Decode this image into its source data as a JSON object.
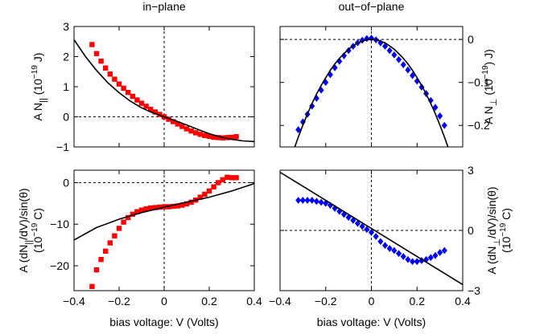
{
  "chart_data": [
    {
      "type": "scatter",
      "title": "in−plane",
      "ylabel_main": "A N",
      "ylabel_sub": "||",
      "ylabel_unit": "(10",
      "ylabel_exp": "−19",
      "ylabel_end": " J)",
      "xlim": [
        -0.4,
        0.4
      ],
      "ylim": [
        -1,
        3
      ],
      "xticks": [],
      "yticks": [
        {
          "v": -1,
          "t": "−1"
        },
        {
          "v": 0,
          "t": "0"
        },
        {
          "v": 1,
          "t": "1"
        },
        {
          "v": 2,
          "t": "2"
        },
        {
          "v": 3,
          "t": "3"
        }
      ],
      "ytick_side": "left",
      "marker": "square",
      "marker_color": "#ff0000",
      "line_color": "#000000",
      "series": [
        {
          "type": "markers",
          "x": [
            -0.32,
            -0.3,
            -0.28,
            -0.26,
            -0.24,
            -0.22,
            -0.2,
            -0.18,
            -0.16,
            -0.14,
            -0.12,
            -0.1,
            -0.08,
            -0.06,
            -0.04,
            -0.02,
            0.0,
            0.02,
            0.04,
            0.06,
            0.08,
            0.1,
            0.12,
            0.14,
            0.16,
            0.18,
            0.2,
            0.22,
            0.24,
            0.26,
            0.28,
            0.3,
            0.32
          ],
          "y": [
            2.4,
            2.1,
            1.85,
            1.62,
            1.42,
            1.25,
            1.09,
            0.95,
            0.81,
            0.68,
            0.56,
            0.45,
            0.35,
            0.25,
            0.16,
            0.08,
            0.0,
            -0.08,
            -0.16,
            -0.24,
            -0.32,
            -0.4,
            -0.47,
            -0.53,
            -0.58,
            -0.62,
            -0.65,
            -0.68,
            -0.69,
            -0.7,
            -0.69,
            -0.68,
            -0.66
          ]
        },
        {
          "type": "line",
          "x": [
            -0.4,
            -0.35,
            -0.3,
            -0.25,
            -0.2,
            -0.15,
            -0.1,
            -0.05,
            0.0,
            0.05,
            0.1,
            0.15,
            0.2,
            0.25,
            0.3,
            0.35,
            0.4
          ],
          "y": [
            2.56,
            2.01,
            1.54,
            1.13,
            0.8,
            0.52,
            0.3,
            0.13,
            0.0,
            -0.13,
            -0.27,
            -0.42,
            -0.56,
            -0.67,
            -0.75,
            -0.8,
            -0.82
          ]
        }
      ]
    },
    {
      "type": "scatter",
      "title": "out−of−plane",
      "ylabel_main": "A N",
      "ylabel_sub": "⊥",
      "ylabel_unit": "(10",
      "ylabel_exp": "−19",
      "ylabel_end": ") J)",
      "xlim": [
        -0.4,
        0.4
      ],
      "ylim": [
        -0.25,
        0.03
      ],
      "xticks": [],
      "yticks": [
        {
          "v": -0.2,
          "t": "−0.2"
        },
        {
          "v": -0.1,
          "t": "−0.1"
        },
        {
          "v": 0,
          "t": "0"
        }
      ],
      "ytick_side": "right",
      "marker": "diamond",
      "marker_color": "#0000ff",
      "line_color": "#000000",
      "series": [
        {
          "type": "markers",
          "x": [
            -0.32,
            -0.3,
            -0.28,
            -0.26,
            -0.24,
            -0.22,
            -0.2,
            -0.18,
            -0.16,
            -0.14,
            -0.12,
            -0.1,
            -0.08,
            -0.06,
            -0.04,
            -0.02,
            0.0,
            0.02,
            0.04,
            0.06,
            0.08,
            0.1,
            0.12,
            0.14,
            0.16,
            0.18,
            0.2,
            0.22,
            0.24,
            0.26,
            0.28,
            0.3,
            0.32
          ],
          "y": [
            -0.21,
            -0.192,
            -0.174,
            -0.155,
            -0.137,
            -0.118,
            -0.1,
            -0.082,
            -0.066,
            -0.051,
            -0.038,
            -0.026,
            -0.016,
            -0.008,
            -0.002,
            0.002,
            0.003,
            -0.001,
            -0.008,
            -0.016,
            -0.026,
            -0.036,
            -0.047,
            -0.059,
            -0.071,
            -0.084,
            -0.097,
            -0.111,
            -0.126,
            -0.142,
            -0.158,
            -0.178,
            -0.2
          ]
        },
        {
          "type": "line",
          "x": [
            -0.34,
            -0.32,
            -0.3,
            -0.28,
            -0.26,
            -0.24,
            -0.22,
            -0.2,
            -0.18,
            -0.16,
            -0.14,
            -0.12,
            -0.1,
            -0.08,
            -0.06,
            -0.04,
            -0.02,
            0.0,
            0.02,
            0.04,
            0.06,
            0.08,
            0.1,
            0.12,
            0.14,
            0.16,
            0.18,
            0.2,
            0.22,
            0.24,
            0.26,
            0.28,
            0.3,
            0.32,
            0.34
          ],
          "y": [
            -0.257,
            -0.227,
            -0.199,
            -0.173,
            -0.149,
            -0.127,
            -0.107,
            -0.089,
            -0.072,
            -0.057,
            -0.044,
            -0.033,
            -0.023,
            -0.015,
            -0.008,
            -0.004,
            -0.001,
            0.0,
            -0.001,
            -0.004,
            -0.008,
            -0.015,
            -0.023,
            -0.033,
            -0.044,
            -0.057,
            -0.072,
            -0.089,
            -0.107,
            -0.127,
            -0.149,
            -0.173,
            -0.199,
            -0.227,
            -0.257
          ]
        }
      ]
    },
    {
      "type": "scatter",
      "title": "",
      "ylabel_main": "A (dN",
      "ylabel_sub": "||",
      "ylabel_rest": "/dV)/sin(θ)",
      "ylabel_unit": "(10",
      "ylabel_exp": "−19",
      "ylabel_end": " C)",
      "xlabel": "bias voltage: V (Volts)",
      "xlim": [
        -0.4,
        0.4
      ],
      "ylim": [
        -26,
        3
      ],
      "xticks": [
        {
          "v": -0.4,
          "t": "−0.4"
        },
        {
          "v": -0.2,
          "t": "−0.2"
        },
        {
          "v": 0,
          "t": "0"
        },
        {
          "v": 0.2,
          "t": "0.2"
        },
        {
          "v": 0.4,
          "t": "0.4"
        }
      ],
      "yticks": [
        {
          "v": -20,
          "t": "−20"
        },
        {
          "v": -10,
          "t": "−10"
        },
        {
          "v": 0,
          "t": "0"
        }
      ],
      "ytick_side": "left",
      "marker": "square",
      "marker_color": "#ff0000",
      "line_color": "#000000",
      "series": [
        {
          "type": "markers",
          "x": [
            -0.32,
            -0.3,
            -0.28,
            -0.26,
            -0.24,
            -0.22,
            -0.2,
            -0.18,
            -0.16,
            -0.14,
            -0.12,
            -0.1,
            -0.08,
            -0.06,
            -0.04,
            -0.02,
            0.0,
            0.02,
            0.04,
            0.06,
            0.08,
            0.1,
            0.12,
            0.14,
            0.16,
            0.18,
            0.2,
            0.22,
            0.24,
            0.26,
            0.28,
            0.3,
            0.32
          ],
          "y": [
            -25,
            -21,
            -18.5,
            -16.5,
            -14.5,
            -12.8,
            -11,
            -9.5,
            -8.4,
            -7.6,
            -7.0,
            -6.6,
            -6.3,
            -6.1,
            -6.0,
            -5.9,
            -5.8,
            -5.8,
            -5.7,
            -5.6,
            -5.4,
            -5.1,
            -4.7,
            -4.2,
            -3.5,
            -2.8,
            -2.0,
            -1.0,
            0.0,
            0.7,
            1.3,
            1.2,
            1.2
          ]
        },
        {
          "type": "line",
          "x": [
            -0.4,
            -0.3,
            -0.2,
            -0.1,
            0.0,
            0.1,
            0.2,
            0.3,
            0.4
          ],
          "y": [
            -13.8,
            -10.8,
            -8.8,
            -7.2,
            -5.9,
            -4.7,
            -3.5,
            -2.0,
            -0.2
          ]
        }
      ]
    },
    {
      "type": "scatter",
      "title": "",
      "ylabel_main": "A (dN",
      "ylabel_sub": "⊥",
      "ylabel_rest": "/dV)/sin(θ)",
      "ylabel_unit": "(10",
      "ylabel_exp": "−19",
      "ylabel_end": " C)",
      "xlabel": "bias voltage: V (Volts)",
      "xlim": [
        -0.4,
        0.4
      ],
      "ylim": [
        -3,
        3
      ],
      "xticks": [
        {
          "v": -0.4,
          "t": "−0.4"
        },
        {
          "v": -0.2,
          "t": "−0.2"
        },
        {
          "v": 0,
          "t": "0"
        },
        {
          "v": 0.2,
          "t": "0.2"
        },
        {
          "v": 0.4,
          "t": "0.4"
        }
      ],
      "yticks": [
        {
          "v": -3,
          "t": "−3"
        },
        {
          "v": 0,
          "t": "0"
        },
        {
          "v": 3,
          "t": "3"
        }
      ],
      "ytick_side": "right",
      "marker": "diamond",
      "marker_color": "#0000ff",
      "line_color": "#000000",
      "series": [
        {
          "type": "markers",
          "x": [
            -0.32,
            -0.3,
            -0.28,
            -0.26,
            -0.24,
            -0.22,
            -0.2,
            -0.18,
            -0.16,
            -0.14,
            -0.12,
            -0.1,
            -0.08,
            -0.06,
            -0.04,
            -0.02,
            0.0,
            0.02,
            0.04,
            0.06,
            0.08,
            0.1,
            0.12,
            0.14,
            0.16,
            0.18,
            0.2,
            0.22,
            0.24,
            0.26,
            0.28,
            0.3,
            0.32
          ],
          "y": [
            1.5,
            1.5,
            1.5,
            1.5,
            1.45,
            1.4,
            1.35,
            1.25,
            1.1,
            0.95,
            0.8,
            0.65,
            0.5,
            0.35,
            0.2,
            0.05,
            -0.1,
            -0.3,
            -0.55,
            -0.75,
            -0.9,
            -1.0,
            -1.15,
            -1.3,
            -1.45,
            -1.55,
            -1.55,
            -1.5,
            -1.45,
            -1.35,
            -1.25,
            -1.1,
            -1.0
          ]
        },
        {
          "type": "line",
          "x": [
            -0.4,
            0.4
          ],
          "y": [
            2.9,
            -2.7
          ]
        }
      ]
    }
  ]
}
